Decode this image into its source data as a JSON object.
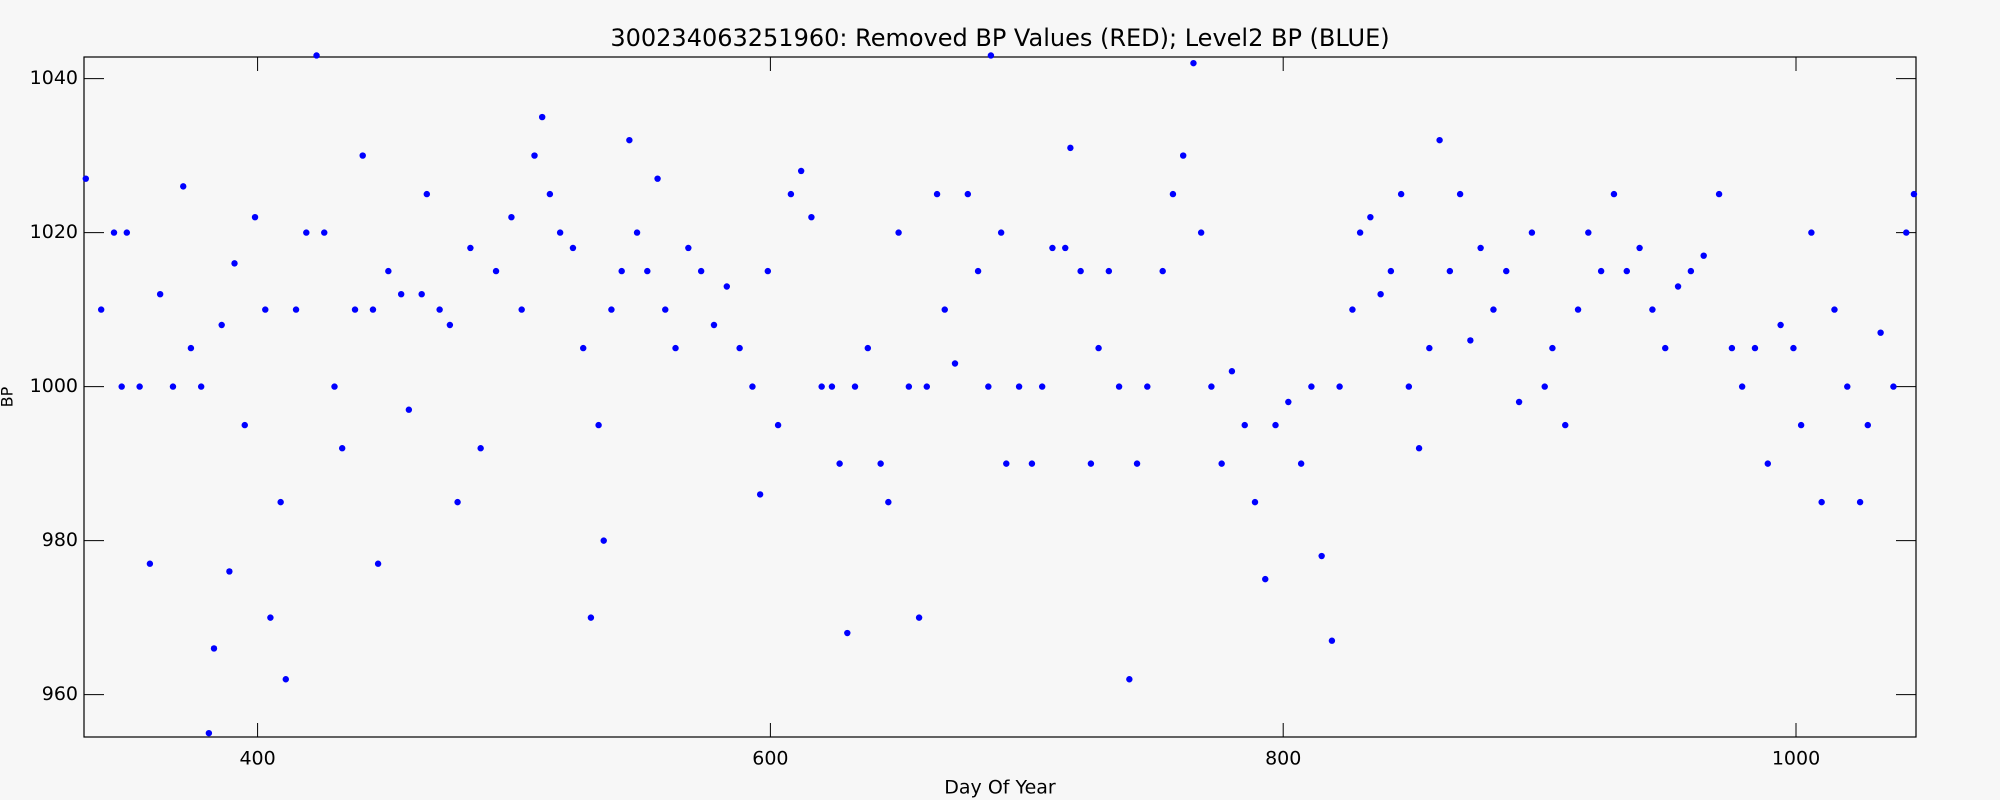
{
  "chart_data": {
    "type": "scatter",
    "title": "300234063251960: Removed BP Values (RED); Level2 BP (BLUE)",
    "x_label": "Day Of Year",
    "y_label": "BP",
    "xlim": [
      332.3,
      1046.8
    ],
    "ylim": [
      954.5,
      1042.8
    ],
    "xticks": [
      400,
      600,
      800,
      1000
    ],
    "yticks": [
      960,
      980,
      1000,
      1020,
      1040
    ],
    "series": [
      {
        "name": "Level2 BP",
        "color": "#0000ff",
        "x": [
          333,
          339,
          344,
          347,
          349,
          354,
          358,
          362,
          367,
          371,
          374,
          378,
          381,
          383,
          386,
          389,
          391,
          395,
          399,
          403,
          405,
          409,
          411,
          415,
          419,
          423,
          426,
          430,
          433,
          438,
          441,
          445,
          447,
          451,
          456,
          459,
          464,
          466,
          471,
          475,
          478,
          483,
          487,
          493,
          499,
          503,
          508,
          511,
          514,
          518,
          523,
          527,
          530,
          533,
          535,
          538,
          542,
          545,
          548,
          552,
          556,
          559,
          563,
          568,
          573,
          578,
          583,
          588,
          593,
          596,
          599,
          603,
          608,
          612,
          616,
          620,
          624,
          627,
          630,
          633,
          638,
          643,
          646,
          650,
          654,
          658,
          661,
          665,
          668,
          672,
          677,
          681,
          685,
          686,
          690,
          692,
          697,
          702,
          706,
          710,
          715,
          717,
          721,
          725,
          728,
          732,
          736,
          740,
          743,
          747,
          753,
          757,
          761,
          765,
          768,
          772,
          776,
          780,
          785,
          789,
          793,
          797,
          802,
          807,
          811,
          815,
          819,
          822,
          827,
          830,
          834,
          838,
          842,
          846,
          849,
          853,
          857,
          861,
          865,
          869,
          873,
          877,
          882,
          887,
          892,
          897,
          902,
          905,
          910,
          915,
          919,
          924,
          929,
          934,
          939,
          944,
          949,
          954,
          959,
          964,
          970,
          975,
          979,
          984,
          989,
          994,
          999,
          1002,
          1006,
          1010,
          1015,
          1020,
          1025,
          1028,
          1033,
          1038,
          1043,
          1046
        ],
        "values": [
          1027,
          1010,
          1020,
          1000,
          1020,
          1000,
          977,
          1012,
          1000,
          1026,
          1005,
          1000,
          955,
          966,
          1008,
          976,
          1016,
          995,
          1022,
          1010,
          970,
          985,
          962,
          1010,
          1020,
          1043,
          1020,
          1000,
          992,
          1010,
          1030,
          1010,
          977,
          1015,
          1012,
          997,
          1012,
          1025,
          1010,
          1008,
          985,
          1018,
          992,
          1015,
          1022,
          1010,
          1030,
          1035,
          1025,
          1020,
          1018,
          1005,
          970,
          995,
          980,
          1010,
          1015,
          1032,
          1020,
          1015,
          1027,
          1010,
          1005,
          1018,
          1015,
          1008,
          1013,
          1005,
          1000,
          986,
          1015,
          995,
          1025,
          1028,
          1022,
          1000,
          1000,
          990,
          968,
          1000,
          1005,
          990,
          985,
          1020,
          1000,
          970,
          1000,
          1025,
          1010,
          1003,
          1025,
          1015,
          1000,
          1043,
          1020,
          990,
          1000,
          990,
          1000,
          1018,
          1018,
          1031,
          1015,
          990,
          1005,
          1015,
          1000,
          962,
          990,
          1000,
          1015,
          1025,
          1030,
          1042,
          1020,
          1000,
          990,
          1002,
          995,
          985,
          975,
          995,
          998,
          990,
          1000,
          978,
          967,
          1000,
          1010,
          1020,
          1022,
          1012,
          1015,
          1025,
          1000,
          992,
          1005,
          1032,
          1015,
          1025,
          1006,
          1018,
          1010,
          1015,
          998,
          1020,
          1000,
          1005,
          995,
          1010,
          1020,
          1015,
          1025,
          1015,
          1018,
          1010,
          1005,
          1013,
          1015,
          1017,
          1025,
          1005,
          1000,
          1005,
          990,
          1008,
          1005,
          995,
          1020,
          985,
          1010,
          1000,
          985,
          995,
          1007,
          1000,
          1020,
          1025
        ]
      }
    ]
  }
}
